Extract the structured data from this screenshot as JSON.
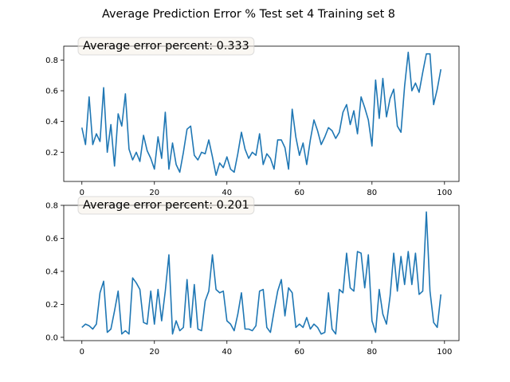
{
  "figure": {
    "title": "Average Prediction Error % Test set 4 Training set 8",
    "line_color": "#1f77b4"
  },
  "chart_data": [
    {
      "type": "line",
      "annotation": "Average error percent: 0.333",
      "xlim": [
        -5,
        104
      ],
      "ylim": [
        0.01,
        0.89
      ],
      "xticks": [
        0,
        20,
        40,
        60,
        80,
        100
      ],
      "yticks": [
        0.2,
        0.4,
        0.6,
        0.8
      ],
      "ytick_labels": [
        "0.2",
        "0.4",
        "0.6",
        "0.8"
      ],
      "grid": false,
      "series": [
        {
          "values": [
            0.36,
            0.25,
            0.56,
            0.25,
            0.32,
            0.27,
            0.62,
            0.2,
            0.38,
            0.11,
            0.45,
            0.37,
            0.58,
            0.22,
            0.15,
            0.2,
            0.14,
            0.31,
            0.21,
            0.16,
            0.09,
            0.3,
            0.16,
            0.46,
            0.09,
            0.26,
            0.12,
            0.07,
            0.2,
            0.35,
            0.37,
            0.18,
            0.15,
            0.2,
            0.19,
            0.28,
            0.17,
            0.05,
            0.13,
            0.1,
            0.17,
            0.09,
            0.07,
            0.19,
            0.33,
            0.22,
            0.16,
            0.2,
            0.18,
            0.32,
            0.12,
            0.19,
            0.16,
            0.09,
            0.28,
            0.28,
            0.23,
            0.09,
            0.48,
            0.3,
            0.18,
            0.26,
            0.12,
            0.28,
            0.41,
            0.34,
            0.25,
            0.3,
            0.36,
            0.34,
            0.29,
            0.33,
            0.46,
            0.51,
            0.38,
            0.47,
            0.32,
            0.56,
            0.49,
            0.41,
            0.24,
            0.67,
            0.42,
            0.68,
            0.43,
            0.55,
            0.61,
            0.37,
            0.33,
            0.63,
            0.85,
            0.6,
            0.65,
            0.59,
            0.72,
            0.84,
            0.84,
            0.51,
            0.61,
            0.74
          ]
        }
      ]
    },
    {
      "type": "line",
      "annotation": "Average error percent: 0.201",
      "xlim": [
        -5,
        104
      ],
      "ylim": [
        -0.02,
        0.8
      ],
      "xticks": [
        0,
        20,
        40,
        60,
        80,
        100
      ],
      "yticks": [
        0.0,
        0.2,
        0.4,
        0.6,
        0.8
      ],
      "ytick_labels": [
        "0.0",
        "0.2",
        "0.4",
        "0.6",
        "0.8"
      ],
      "grid": false,
      "series": [
        {
          "values": [
            0.06,
            0.08,
            0.07,
            0.05,
            0.08,
            0.27,
            0.34,
            0.03,
            0.05,
            0.16,
            0.28,
            0.02,
            0.04,
            0.02,
            0.36,
            0.33,
            0.29,
            0.09,
            0.08,
            0.28,
            0.08,
            0.29,
            0.1,
            0.28,
            0.5,
            0.02,
            0.1,
            0.04,
            0.06,
            0.35,
            0.06,
            0.32,
            0.05,
            0.04,
            0.22,
            0.28,
            0.5,
            0.29,
            0.27,
            0.28,
            0.1,
            0.08,
            0.04,
            0.14,
            0.27,
            0.05,
            0.05,
            0.04,
            0.07,
            0.28,
            0.29,
            0.06,
            0.03,
            0.16,
            0.28,
            0.35,
            0.13,
            0.3,
            0.27,
            0.06,
            0.08,
            0.06,
            0.12,
            0.05,
            0.08,
            0.06,
            0.02,
            0.03,
            0.27,
            0.05,
            0.02,
            0.29,
            0.27,
            0.51,
            0.3,
            0.28,
            0.52,
            0.51,
            0.3,
            0.5,
            0.1,
            0.03,
            0.29,
            0.14,
            0.08,
            0.25,
            0.51,
            0.28,
            0.49,
            0.32,
            0.52,
            0.32,
            0.51,
            0.26,
            0.28,
            0.76,
            0.28,
            0.09,
            0.06,
            0.26
          ]
        }
      ]
    }
  ]
}
